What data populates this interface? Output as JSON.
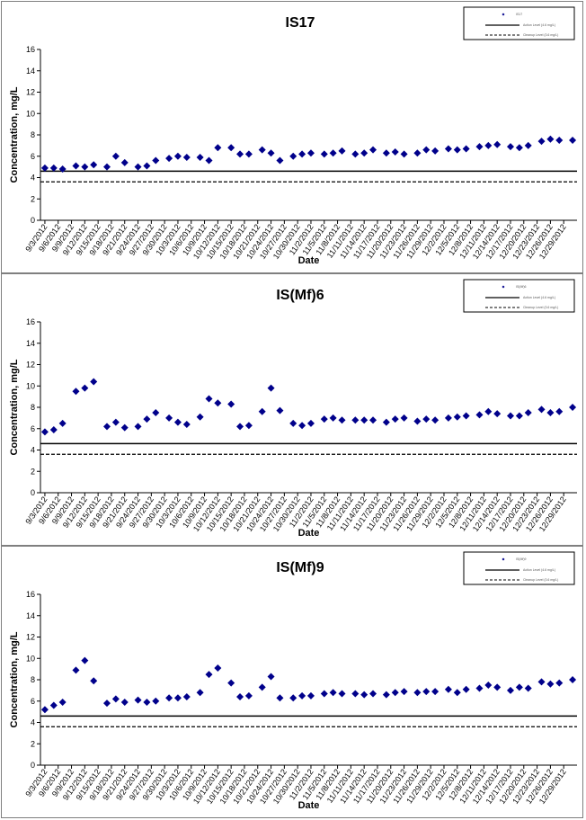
{
  "chart_data": [
    {
      "type": "scatter",
      "title": "IS17",
      "xlabel": "Date",
      "ylabel": "Concentration, mg/L",
      "ylim": [
        0,
        16
      ],
      "yticks": [
        0,
        2,
        4,
        6,
        8,
        10,
        12,
        14,
        16
      ],
      "grid": false,
      "legend_position": "top-right",
      "legend": [
        "IS17",
        "Action Level (4.6 mg/L)",
        "Cleanup Level (3.6 mg/L)"
      ],
      "x_tick_labels": [
        "9/3/2012",
        "9/6/2012",
        "9/9/2012",
        "9/12/2012",
        "9/15/2012",
        "9/18/2012",
        "9/21/2012",
        "9/24/2012",
        "9/27/2012",
        "9/30/2012",
        "10/3/2012",
        "10/6/2012",
        "10/9/2012",
        "10/12/2012",
        "10/15/2012",
        "10/18/2012",
        "10/21/2012",
        "10/24/2012",
        "10/27/2012",
        "10/30/2012",
        "11/2/2012",
        "11/5/2012",
        "11/8/2012",
        "11/11/2012",
        "11/14/2012",
        "11/17/2012",
        "11/20/2012",
        "11/23/2012",
        "11/26/2012",
        "11/29/2012",
        "12/2/2012",
        "12/5/2012",
        "12/8/2012",
        "12/11/2012",
        "12/14/2012",
        "12/17/2012",
        "12/20/2012",
        "12/23/2012",
        "12/26/2012",
        "12/29/2012"
      ],
      "series": [
        {
          "name": "IS17",
          "color": "#00008b",
          "marker": "diamond",
          "x": [
            "2012-09-03",
            "2012-09-05",
            "2012-09-07",
            "2012-09-10",
            "2012-09-12",
            "2012-09-14",
            "2012-09-17",
            "2012-09-19",
            "2012-09-21",
            "2012-09-24",
            "2012-09-26",
            "2012-09-28",
            "2012-10-01",
            "2012-10-03",
            "2012-10-05",
            "2012-10-08",
            "2012-10-10",
            "2012-10-12",
            "2012-10-15",
            "2012-10-17",
            "2012-10-19",
            "2012-10-22",
            "2012-10-24",
            "2012-10-26",
            "2012-10-29",
            "2012-10-31",
            "2012-11-02",
            "2012-11-05",
            "2012-11-07",
            "2012-11-09",
            "2012-11-12",
            "2012-11-14",
            "2012-11-16",
            "2012-11-19",
            "2012-11-21",
            "2012-11-23",
            "2012-11-26",
            "2012-11-28",
            "2012-11-30",
            "2012-12-03",
            "2012-12-05",
            "2012-12-07",
            "2012-12-10",
            "2012-12-12",
            "2012-12-14",
            "2012-12-17",
            "2012-12-19",
            "2012-12-21",
            "2012-12-24",
            "2012-12-26",
            "2012-12-28",
            "2012-12-31"
          ],
          "y": [
            4.9,
            4.9,
            4.8,
            5.1,
            5.0,
            5.2,
            5.0,
            6.0,
            5.4,
            5.0,
            5.1,
            5.6,
            5.8,
            6.0,
            5.9,
            5.9,
            5.6,
            6.8,
            6.8,
            6.2,
            6.2,
            6.6,
            6.3,
            5.6,
            6.0,
            6.2,
            6.3,
            6.2,
            6.3,
            6.5,
            6.2,
            6.3,
            6.6,
            6.3,
            6.4,
            6.2,
            6.3,
            6.6,
            6.5,
            6.7,
            6.6,
            6.7,
            6.9,
            7.0,
            7.1,
            6.9,
            6.8,
            7.0,
            7.4,
            7.6,
            7.5,
            7.5
          ]
        },
        {
          "name": "Action Level (4.6 mg/L)",
          "color": "#000000",
          "style": "solid",
          "constant": 4.6
        },
        {
          "name": "Cleanup Level (3.6 mg/L)",
          "color": "#000000",
          "style": "dashed",
          "constant": 3.6
        }
      ]
    },
    {
      "type": "scatter",
      "title": "IS(Mf)6",
      "xlabel": "Date",
      "ylabel": "Concentration, mg/L",
      "ylim": [
        0,
        16
      ],
      "yticks": [
        0,
        2,
        4,
        6,
        8,
        10,
        12,
        14,
        16
      ],
      "grid": false,
      "legend_position": "top-right",
      "legend": [
        "IS(Mf)6",
        "Action Level (4.6 mg/L)",
        "Cleanup Level (3.6 mg/L)"
      ],
      "x_tick_labels": [
        "9/3/2012",
        "9/6/2012",
        "9/9/2012",
        "9/12/2012",
        "9/15/2012",
        "9/18/2012",
        "9/21/2012",
        "9/24/2012",
        "9/27/2012",
        "9/30/2012",
        "10/3/2012",
        "10/6/2012",
        "10/9/2012",
        "10/12/2012",
        "10/15/2012",
        "10/18/2012",
        "10/21/2012",
        "10/24/2012",
        "10/27/2012",
        "10/30/2012",
        "11/2/2012",
        "11/5/2012",
        "11/8/2012",
        "11/11/2012",
        "11/14/2012",
        "11/17/2012",
        "11/20/2012",
        "11/23/2012",
        "11/26/2012",
        "11/29/2012",
        "12/2/2012",
        "12/5/2012",
        "12/8/2012",
        "12/11/2012",
        "12/14/2012",
        "12/17/2012",
        "12/20/2012",
        "12/23/2012",
        "12/26/2012",
        "12/29/2012"
      ],
      "series": [
        {
          "name": "IS(Mf)6",
          "color": "#00008b",
          "marker": "diamond",
          "x": [
            "2012-09-03",
            "2012-09-05",
            "2012-09-07",
            "2012-09-10",
            "2012-09-12",
            "2012-09-14",
            "2012-09-17",
            "2012-09-19",
            "2012-09-21",
            "2012-09-24",
            "2012-09-26",
            "2012-09-28",
            "2012-10-01",
            "2012-10-03",
            "2012-10-05",
            "2012-10-08",
            "2012-10-10",
            "2012-10-12",
            "2012-10-15",
            "2012-10-17",
            "2012-10-19",
            "2012-10-22",
            "2012-10-24",
            "2012-10-26",
            "2012-10-29",
            "2012-10-31",
            "2012-11-02",
            "2012-11-05",
            "2012-11-07",
            "2012-11-09",
            "2012-11-12",
            "2012-11-14",
            "2012-11-16",
            "2012-11-19",
            "2012-11-21",
            "2012-11-23",
            "2012-11-26",
            "2012-11-28",
            "2012-11-30",
            "2012-12-03",
            "2012-12-05",
            "2012-12-07",
            "2012-12-10",
            "2012-12-12",
            "2012-12-14",
            "2012-12-17",
            "2012-12-19",
            "2012-12-21",
            "2012-12-24",
            "2012-12-26",
            "2012-12-28",
            "2012-12-31"
          ],
          "y": [
            5.7,
            5.9,
            6.5,
            9.5,
            9.8,
            10.4,
            6.2,
            6.6,
            6.1,
            6.2,
            6.9,
            7.5,
            7.0,
            6.6,
            6.4,
            7.1,
            8.8,
            8.4,
            8.3,
            6.2,
            6.3,
            7.6,
            9.8,
            7.7,
            6.5,
            6.3,
            6.5,
            6.9,
            7.0,
            6.8,
            6.8,
            6.8,
            6.8,
            6.6,
            6.9,
            7.0,
            6.7,
            6.9,
            6.8,
            7.0,
            7.1,
            7.2,
            7.3,
            7.6,
            7.4,
            7.2,
            7.2,
            7.5,
            7.8,
            7.5,
            7.6,
            8.0
          ]
        },
        {
          "name": "Action Level (4.6 mg/L)",
          "color": "#000000",
          "style": "solid",
          "constant": 4.6
        },
        {
          "name": "Cleanup Level (3.6 mg/L)",
          "color": "#000000",
          "style": "dashed",
          "constant": 3.6
        }
      ]
    },
    {
      "type": "scatter",
      "title": "IS(Mf)9",
      "xlabel": "Date",
      "ylabel": "Concentration, mg/L",
      "ylim": [
        0,
        16
      ],
      "yticks": [
        0,
        2,
        4,
        6,
        8,
        10,
        12,
        14,
        16
      ],
      "grid": false,
      "legend_position": "top-right",
      "legend": [
        "IS(Mf)9",
        "Action Level (4.6 mg/L)",
        "Cleanup Level (3.6 mg/L)"
      ],
      "x_tick_labels": [
        "9/3/2012",
        "9/6/2012",
        "9/9/2012",
        "9/12/2012",
        "9/15/2012",
        "9/18/2012",
        "9/21/2012",
        "9/24/2012",
        "9/27/2012",
        "9/30/2012",
        "10/3/2012",
        "10/6/2012",
        "10/9/2012",
        "10/12/2012",
        "10/15/2012",
        "10/18/2012",
        "10/21/2012",
        "10/24/2012",
        "10/27/2012",
        "10/30/2012",
        "11/2/2012",
        "11/5/2012",
        "11/8/2012",
        "11/11/2012",
        "11/14/2012",
        "11/17/2012",
        "11/20/2012",
        "11/23/2012",
        "11/26/2012",
        "11/29/2012",
        "12/2/2012",
        "12/5/2012",
        "12/8/2012",
        "12/11/2012",
        "12/14/2012",
        "12/17/2012",
        "12/20/2012",
        "12/23/2012",
        "12/26/2012",
        "12/29/2012"
      ],
      "series": [
        {
          "name": "IS(Mf)9",
          "color": "#00008b",
          "marker": "diamond",
          "x": [
            "2012-09-03",
            "2012-09-05",
            "2012-09-07",
            "2012-09-10",
            "2012-09-12",
            "2012-09-14",
            "2012-09-17",
            "2012-09-19",
            "2012-09-21",
            "2012-09-24",
            "2012-09-26",
            "2012-09-28",
            "2012-10-01",
            "2012-10-03",
            "2012-10-05",
            "2012-10-08",
            "2012-10-10",
            "2012-10-12",
            "2012-10-15",
            "2012-10-17",
            "2012-10-19",
            "2012-10-22",
            "2012-10-24",
            "2012-10-26",
            "2012-10-29",
            "2012-10-31",
            "2012-11-02",
            "2012-11-05",
            "2012-11-07",
            "2012-11-09",
            "2012-11-12",
            "2012-11-14",
            "2012-11-16",
            "2012-11-19",
            "2012-11-21",
            "2012-11-23",
            "2012-11-26",
            "2012-11-28",
            "2012-11-30",
            "2012-12-03",
            "2012-12-05",
            "2012-12-07",
            "2012-12-10",
            "2012-12-12",
            "2012-12-14",
            "2012-12-17",
            "2012-12-19",
            "2012-12-21",
            "2012-12-24",
            "2012-12-26",
            "2012-12-28",
            "2012-12-31"
          ],
          "y": [
            5.2,
            5.6,
            5.9,
            8.9,
            9.8,
            7.9,
            5.8,
            6.2,
            5.9,
            6.1,
            5.9,
            6.0,
            6.3,
            6.3,
            6.4,
            6.8,
            8.5,
            9.1,
            7.7,
            6.4,
            6.5,
            7.3,
            8.3,
            6.3,
            6.3,
            6.5,
            6.5,
            6.7,
            6.8,
            6.7,
            6.7,
            6.6,
            6.7,
            6.6,
            6.8,
            6.9,
            6.8,
            6.9,
            6.9,
            7.1,
            6.8,
            7.1,
            7.2,
            7.5,
            7.3,
            7.0,
            7.3,
            7.2,
            7.8,
            7.6,
            7.7,
            8.0
          ]
        },
        {
          "name": "Action Level (4.6 mg/L)",
          "color": "#000000",
          "style": "solid",
          "constant": 4.6
        },
        {
          "name": "Cleanup Level (3.6 mg/L)",
          "color": "#000000",
          "style": "dashed",
          "constant": 3.6
        }
      ]
    }
  ]
}
